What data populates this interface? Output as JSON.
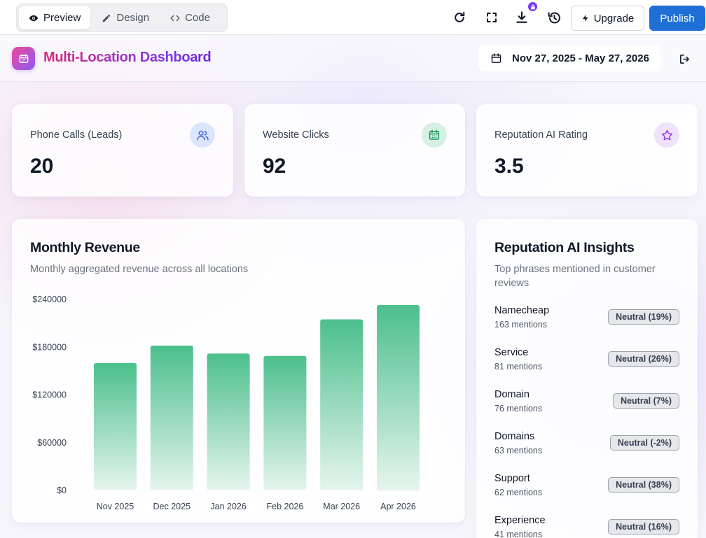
{
  "toolbar": {
    "tabs": [
      {
        "label": "Preview",
        "icon": "eye-icon"
      },
      {
        "label": "Design",
        "icon": "pencil-icon"
      },
      {
        "label": "Code",
        "icon": "code-icon"
      }
    ],
    "upgrade_label": "Upgrade",
    "publish_label": "Publish"
  },
  "header": {
    "title": "Multi-Location Dashboard",
    "date_range": "Nov 27, 2025 - May 27, 2026"
  },
  "kpis": [
    {
      "label": "Phone Calls (Leads)",
      "value": "20",
      "icon": "users-icon",
      "icon_bg": "#dbe5fb",
      "icon_color": "#3b63d8"
    },
    {
      "label": "Website Clicks",
      "value": "92",
      "icon": "calendar-icon",
      "icon_bg": "#d6f0e3",
      "icon_color": "#16955e"
    },
    {
      "label": "Reputation AI Rating",
      "value": "3.5",
      "icon": "star-icon",
      "icon_bg": "#efe2fb",
      "icon_color": "#9333ea"
    }
  ],
  "revenue": {
    "title": "Monthly Revenue",
    "subtitle": "Monthly aggregated revenue across all locations"
  },
  "insights": {
    "title": "Reputation AI Insights",
    "subtitle_line1": "Top phrases mentioned in customer",
    "subtitle_line2": "reviews",
    "items": [
      {
        "name": "Namecheap",
        "mentions": "163 mentions",
        "badge": "Neutral (19%)"
      },
      {
        "name": "Service",
        "mentions": "81 mentions",
        "badge": "Neutral (26%)"
      },
      {
        "name": "Domain",
        "mentions": "76 mentions",
        "badge": "Neutral (7%)"
      },
      {
        "name": "Domains",
        "mentions": "63 mentions",
        "badge": "Neutral (-2%)"
      },
      {
        "name": "Support",
        "mentions": "62 mentions",
        "badge": "Neutral (38%)"
      },
      {
        "name": "Experience",
        "mentions": "41 mentions",
        "badge": "Neutral (16%)"
      }
    ]
  },
  "colors": {
    "accent": "#1f6fd6",
    "bar_top": "#4cbf8c",
    "bar_bottom": "#e6f5ee"
  },
  "chart_data": {
    "type": "bar",
    "categories": [
      "Nov 2025",
      "Dec 2025",
      "Jan 2026",
      "Feb 2026",
      "Mar 2026",
      "Apr 2026"
    ],
    "values": [
      160000,
      182000,
      172000,
      169000,
      215000,
      233000
    ],
    "ylim": [
      0,
      240000
    ],
    "yticks": [
      0,
      60000,
      120000,
      180000,
      240000
    ],
    "ytick_labels": [
      "$0",
      "$60000",
      "$120000",
      "$180000",
      "$240000"
    ],
    "grid": false,
    "legend": "none"
  }
}
